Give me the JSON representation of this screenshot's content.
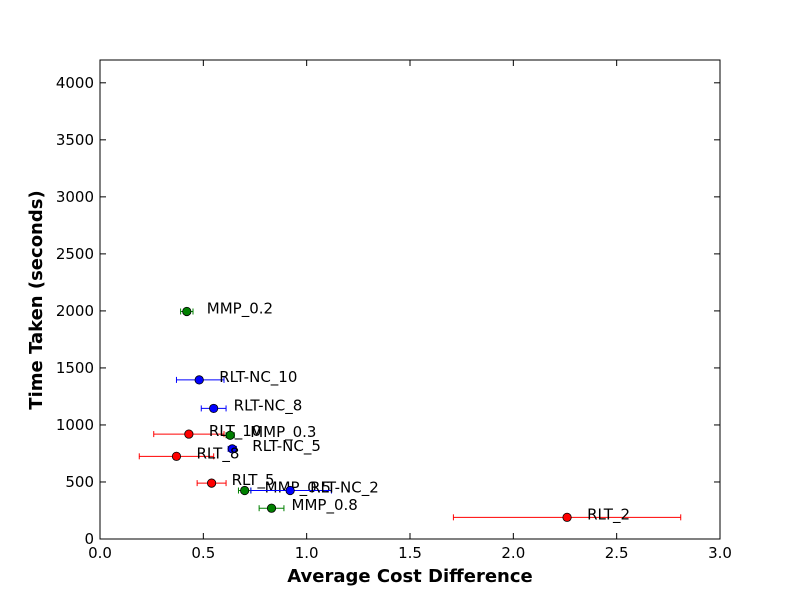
{
  "chart_data": {
    "type": "scatter",
    "title": "",
    "xlabel": "Average Cost Difference",
    "ylabel": "Time Taken (seconds)",
    "xlim": [
      0.0,
      3.0
    ],
    "ylim": [
      0,
      4200
    ],
    "xticks": [
      "0.0",
      "0.5",
      "1.0",
      "1.5",
      "2.0",
      "2.5",
      "3.0"
    ],
    "xtick_values": [
      0.0,
      0.5,
      1.0,
      1.5,
      2.0,
      2.5,
      3.0
    ],
    "yticks": [
      "0",
      "500",
      "1000",
      "1500",
      "2000",
      "2500",
      "3000",
      "3500",
      "4000"
    ],
    "ytick_values": [
      0,
      500,
      1000,
      1500,
      2000,
      2500,
      3000,
      3500,
      4000
    ],
    "grid": false,
    "colors": {
      "RLT": "#ff0000",
      "RLT-NC": "#0000ff",
      "MMP": "#008000"
    },
    "points": [
      {
        "label": "MMP_0.2",
        "group": "MMP",
        "x": 0.42,
        "y": 1995,
        "xerr_low": 0.39,
        "xerr_high": 0.45
      },
      {
        "label": "RLT-NC_10",
        "group": "RLT-NC",
        "x": 0.48,
        "y": 1395,
        "xerr_low": 0.37,
        "xerr_high": 0.6
      },
      {
        "label": "RLT-NC_8",
        "group": "RLT-NC",
        "x": 0.55,
        "y": 1145,
        "xerr_low": 0.49,
        "xerr_high": 0.61
      },
      {
        "label": "RLT_10",
        "group": "RLT",
        "x": 0.43,
        "y": 920,
        "xerr_low": 0.26,
        "xerr_high": 0.6
      },
      {
        "label": "MMP_0.3",
        "group": "MMP",
        "x": 0.63,
        "y": 910,
        "xerr_low": 0.61,
        "xerr_high": 0.65
      },
      {
        "label": "RLT-NC_5",
        "group": "RLT-NC",
        "x": 0.64,
        "y": 790,
        "xerr_low": 0.62,
        "xerr_high": 0.66
      },
      {
        "label": "RLT_8",
        "group": "RLT",
        "x": 0.37,
        "y": 725,
        "xerr_low": 0.19,
        "xerr_high": 0.55
      },
      {
        "label": "RLT_5",
        "group": "RLT",
        "x": 0.54,
        "y": 490,
        "xerr_low": 0.47,
        "xerr_high": 0.61
      },
      {
        "label": "MMP_0.5",
        "group": "MMP",
        "x": 0.7,
        "y": 425,
        "xerr_low": 0.67,
        "xerr_high": 0.73
      },
      {
        "label": "RLT-NC_2",
        "group": "RLT-NC",
        "x": 0.92,
        "y": 425,
        "xerr_low": 0.73,
        "xerr_high": 1.12
      },
      {
        "label": "MMP_0.8",
        "group": "MMP",
        "x": 0.83,
        "y": 270,
        "xerr_low": 0.77,
        "xerr_high": 0.89
      },
      {
        "label": "RLT_2",
        "group": "RLT",
        "x": 2.26,
        "y": 190,
        "xerr_low": 1.71,
        "xerr_high": 2.81
      }
    ]
  }
}
